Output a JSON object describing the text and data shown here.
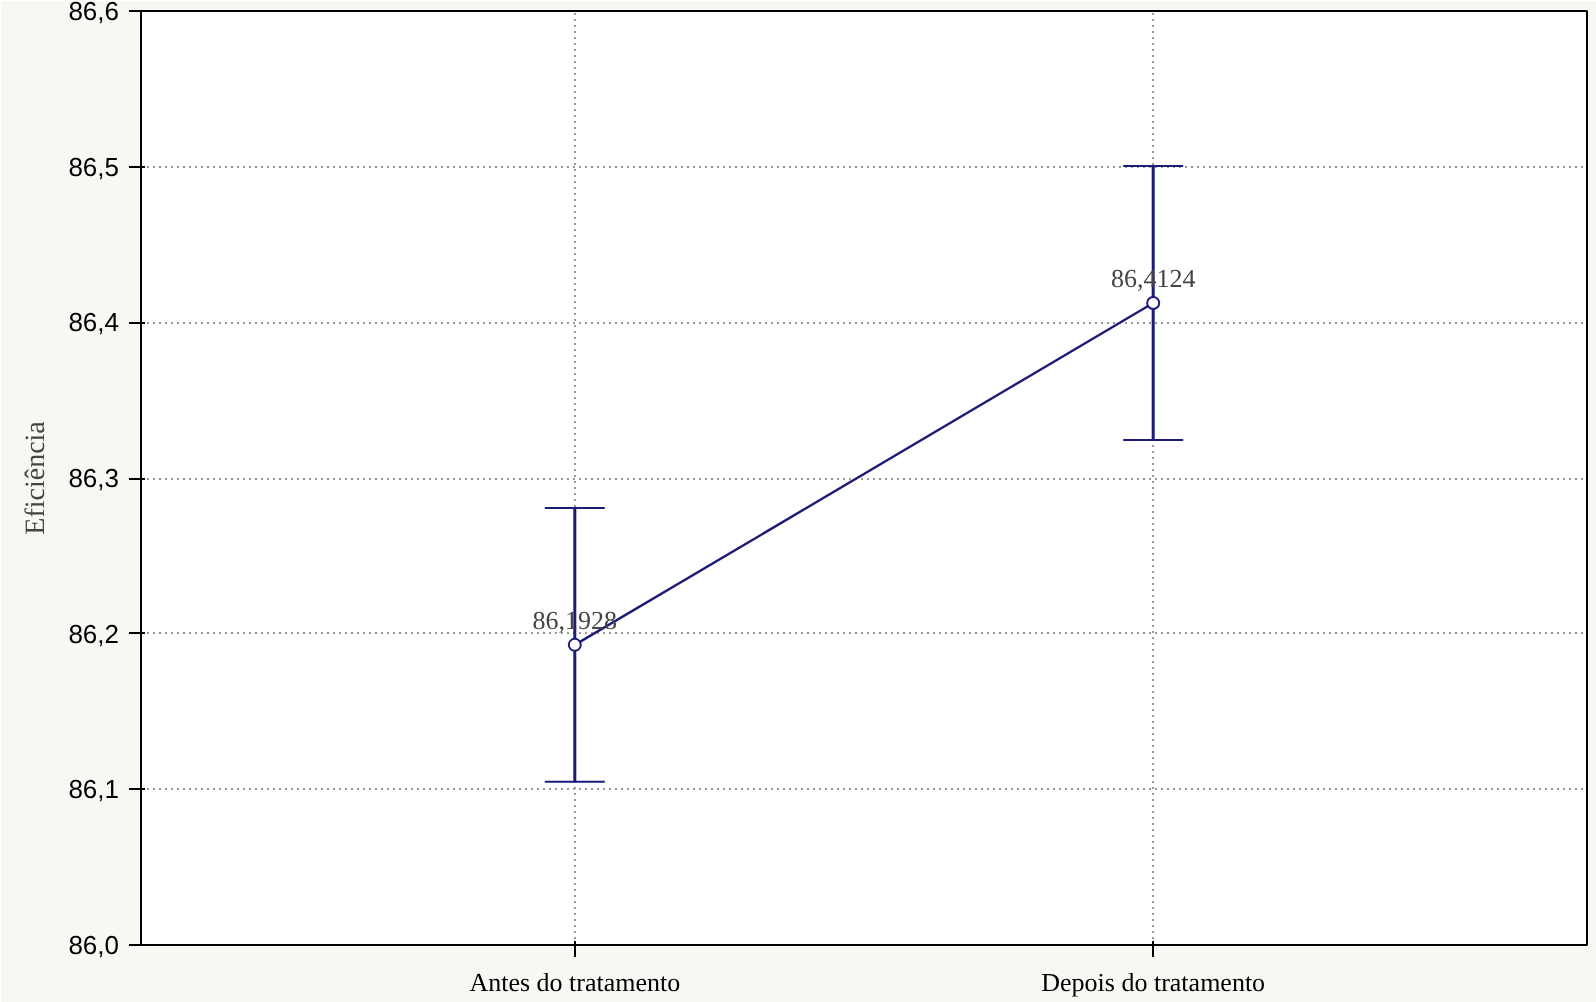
{
  "chart_data": {
    "type": "line",
    "ylabel": "Eficiência",
    "categories": [
      "Antes do tratamento",
      "Depois do tratamento"
    ],
    "series": [
      {
        "color": "#1c1c78",
        "values": [
          86.1928,
          86.4124
        ],
        "errors": [
          0.088,
          0.088
        ],
        "value_labels": [
          "86,1928",
          "86,4124"
        ]
      }
    ],
    "ylim": [
      86.0,
      86.6
    ],
    "yticks": [
      {
        "value": 86.0,
        "label": "86,0"
      },
      {
        "value": 86.1,
        "label": "86,1"
      },
      {
        "value": 86.2,
        "label": "86,2"
      },
      {
        "value": 86.3,
        "label": "86,3"
      },
      {
        "value": 86.4,
        "label": "86,4"
      },
      {
        "value": 86.5,
        "label": "86,5"
      },
      {
        "value": 86.6,
        "label": "86,6"
      }
    ],
    "grid": true,
    "marker": "circle",
    "line_style": "solid"
  }
}
